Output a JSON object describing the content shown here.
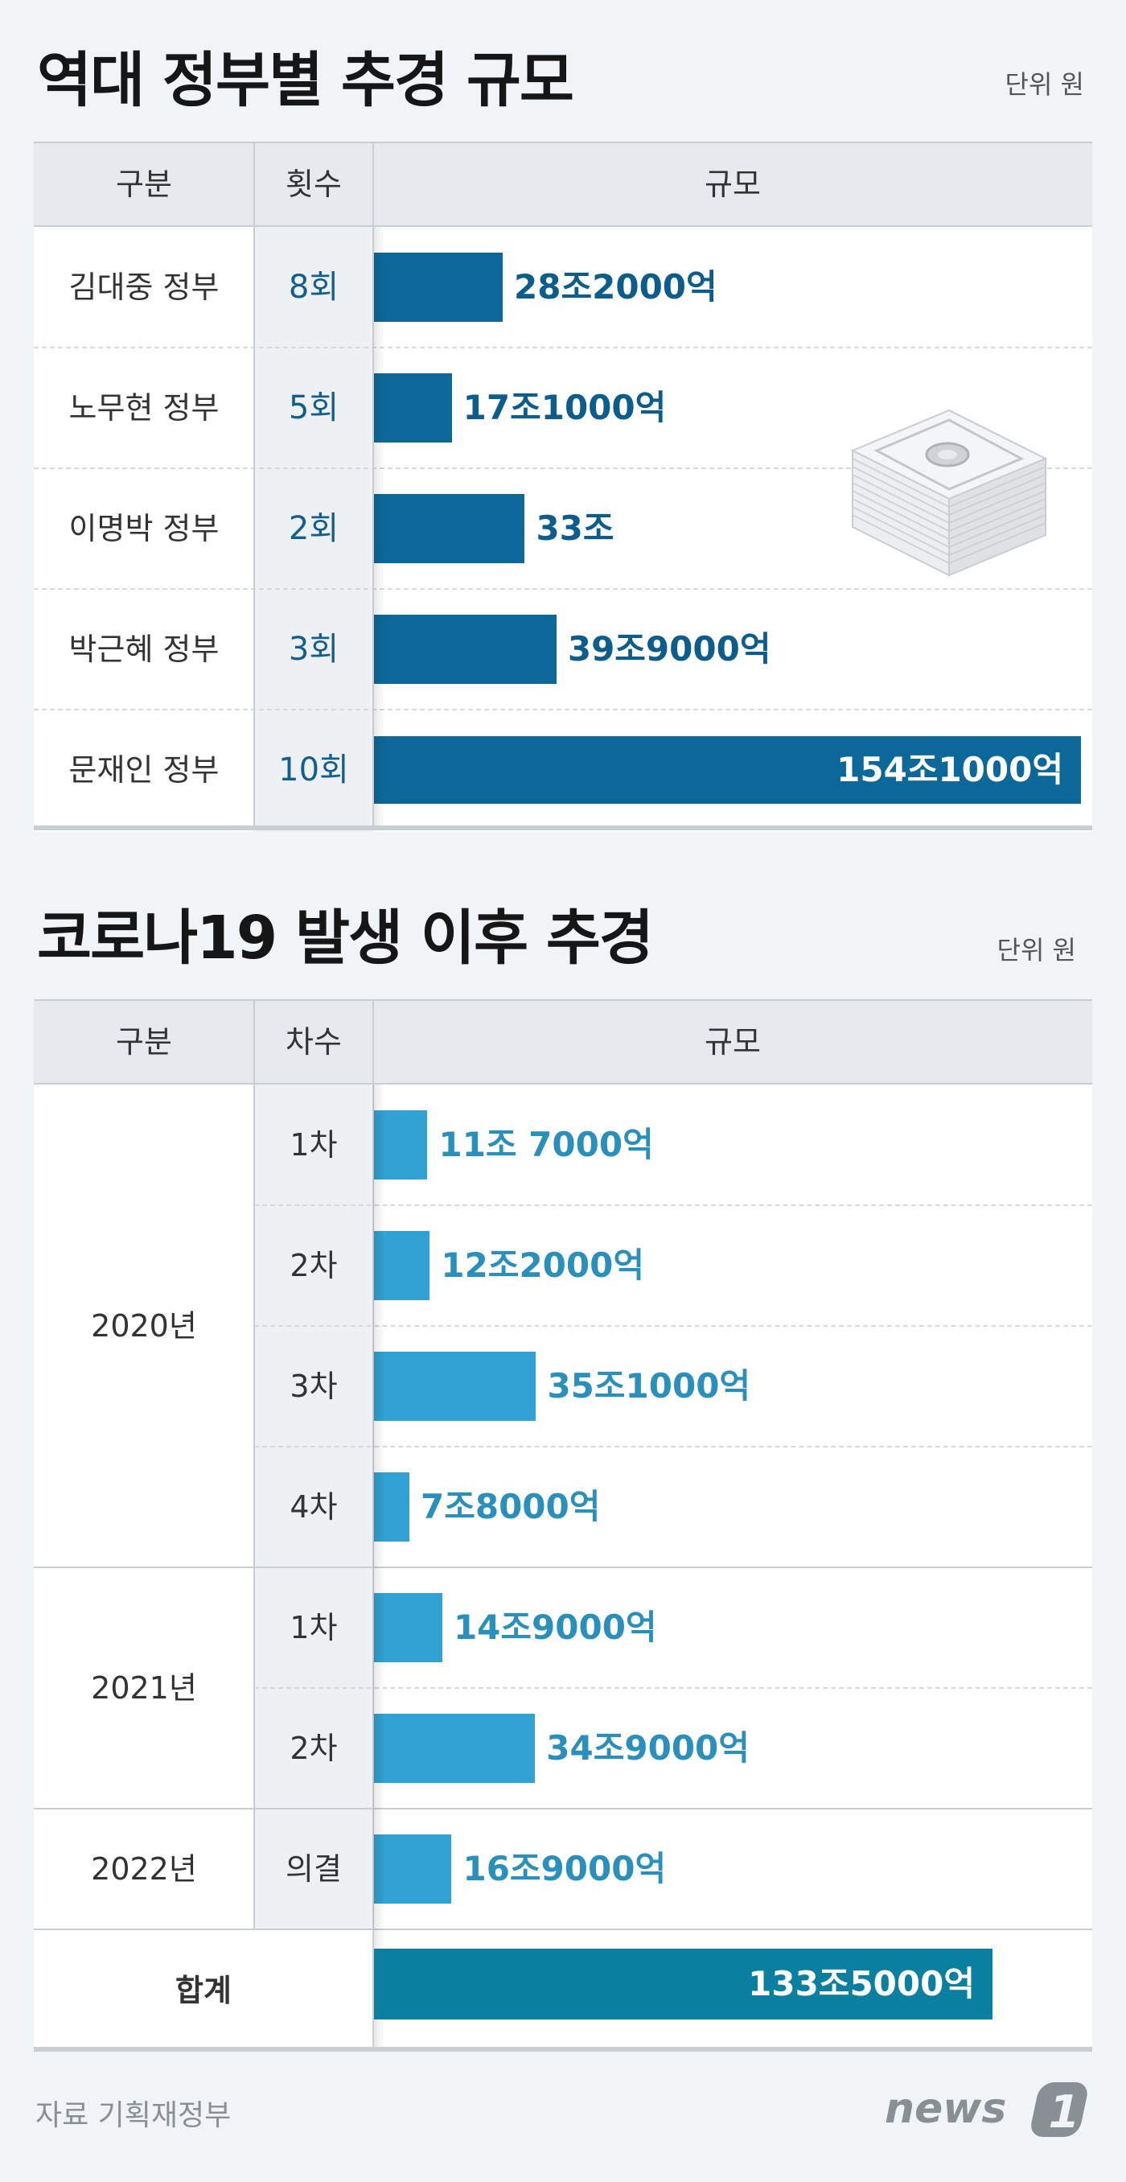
{
  "chart_data": [
    {
      "type": "bar",
      "title": "역대 정부별 추경 규모",
      "unit": "단위 원",
      "headers": [
        "구분",
        "횟수",
        "규모"
      ],
      "categories": [
        "김대중 정부",
        "노무현 정부",
        "이명박 정부",
        "박근혜 정부",
        "문재인 정부"
      ],
      "counts": [
        "8회",
        "5회",
        "2회",
        "3회",
        "10회"
      ],
      "values": [
        28.2,
        17.1,
        33,
        39.9,
        154.1
      ],
      "value_labels": [
        "28조2000억",
        "17조1000억",
        "33조",
        "39조9000억",
        "154조1000억"
      ],
      "value_unit": "조원",
      "colors": {
        "bar": "#0c6898",
        "label": "#0c5d8b"
      }
    },
    {
      "type": "bar",
      "title": "코로나19 발생 이후 추경",
      "unit": "단위 원",
      "headers": [
        "구분",
        "차수",
        "규모"
      ],
      "groups": [
        {
          "year": "2020년",
          "rows": [
            {
              "round": "1차",
              "value": 11.7,
              "label": "11조 7000억"
            },
            {
              "round": "2차",
              "value": 12.2,
              "label": "12조2000억"
            },
            {
              "round": "3차",
              "value": 35.1,
              "label": "35조1000억"
            },
            {
              "round": "4차",
              "value": 7.8,
              "label": "7조8000억"
            }
          ]
        },
        {
          "year": "2021년",
          "rows": [
            {
              "round": "1차",
              "value": 14.9,
              "label": "14조9000억"
            },
            {
              "round": "2차",
              "value": 34.9,
              "label": "34조9000억"
            }
          ]
        },
        {
          "year": "2022년",
          "rows": [
            {
              "round": "의결",
              "value": 16.9,
              "label": "16조9000억"
            }
          ]
        }
      ],
      "total": {
        "label": "합계",
        "value": 133.5,
        "value_label": "133조5000억"
      },
      "value_unit": "조원",
      "colors": {
        "bar": "#31a0d2",
        "label": "#2b8fbc",
        "total_bar": "#0b7fa0"
      }
    }
  ],
  "footer": {
    "source": "자료 기획재정부",
    "logo": "news1"
  },
  "icons": {
    "illustration": "money-stack-icon"
  }
}
